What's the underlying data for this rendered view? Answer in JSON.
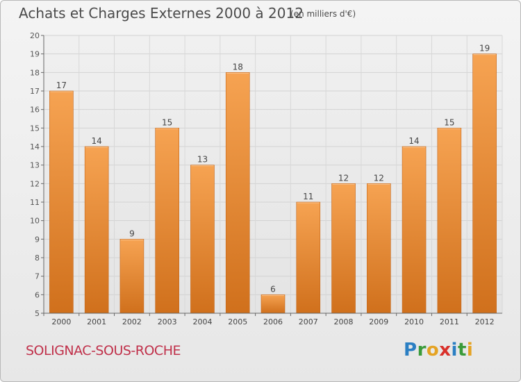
{
  "header": {
    "title": "Achats et Charges Externes 2000 à 2012",
    "subtitle": "(en milliers d'€)"
  },
  "footer": {
    "commune": "SOLIGNAC-SOUS-ROCHE",
    "brand_letters": [
      "P",
      "r",
      "o",
      "x",
      "i",
      "t",
      "i"
    ],
    "brand_colors": [
      "#2b7fc3",
      "#3a9b3a",
      "#e5a323",
      "#d9302a",
      "#2b7fc3",
      "#3a9b3a",
      "#e5a323"
    ]
  },
  "chart_data": {
    "type": "bar",
    "title": "Achats et Charges Externes 2000 à 2012",
    "subtitle": "(en milliers d'€)",
    "xlabel": "",
    "ylabel": "",
    "categories": [
      "2000",
      "2001",
      "2002",
      "2003",
      "2004",
      "2005",
      "2006",
      "2007",
      "2008",
      "2009",
      "2010",
      "2011",
      "2012"
    ],
    "values": [
      17,
      14,
      9,
      15,
      13,
      18,
      6,
      11,
      12,
      12,
      14,
      15,
      19
    ],
    "ylim": [
      5,
      20
    ],
    "yticks": [
      5,
      6,
      7,
      8,
      9,
      10,
      11,
      12,
      13,
      14,
      15,
      16,
      17,
      18,
      19,
      20
    ],
    "grid": true,
    "bar_color": "#f0923a",
    "bar_color_dark": "#cf6a14",
    "data_labels": true
  }
}
